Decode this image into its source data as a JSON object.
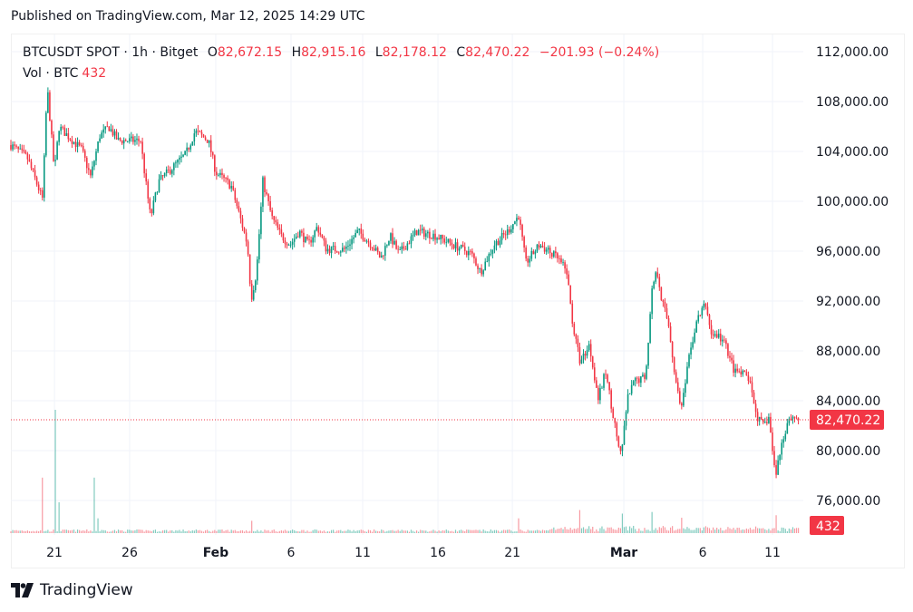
{
  "header": {
    "published": "Published on TradingView.com, Mar 12, 2025 14:29 UTC"
  },
  "legend": {
    "symbol": "BTCUSDT SPOT · 1h · Bitget",
    "o_label": "O",
    "o": "82,672.15",
    "h_label": "H",
    "h": "82,915.16",
    "l_label": "L",
    "l": "82,178.12",
    "c_label": "C",
    "c": "82,470.22",
    "change": "−201.93 (−0.24%)",
    "vol_label": "Vol · BTC",
    "vol": "432"
  },
  "footer": {
    "brand": "TradingView"
  },
  "colors": {
    "up": "#089981",
    "down": "#f23645",
    "grid": "#f0f3fa",
    "badge": "#f23645"
  },
  "chart_data": {
    "type": "candlestick",
    "title": "BTCUSDT SPOT · 1h · Bitget",
    "x_unit": "days since Jan 18, 2025",
    "ylim": [
      74400,
      114600
    ],
    "y_ticks": [
      76000,
      80000,
      84000,
      88000,
      92000,
      96000,
      100000,
      104000,
      108000,
      112000
    ],
    "y_tick_labels": [
      "76,000.00",
      "80,000.00",
      "84,000.00",
      "88,000.00",
      "92,000.00",
      "96,000.00",
      "100,000.00",
      "104,000.00",
      "108,000.00",
      "112,000.00"
    ],
    "x_ticks": [
      {
        "day": 2.94,
        "label": "21",
        "bold": false
      },
      {
        "day": 8.01,
        "label": "26",
        "bold": false
      },
      {
        "day": 13.82,
        "label": "Feb",
        "bold": true
      },
      {
        "day": 18.9,
        "label": "6",
        "bold": false
      },
      {
        "day": 23.73,
        "label": "11",
        "bold": false
      },
      {
        "day": 28.81,
        "label": "16",
        "bold": false
      },
      {
        "day": 33.83,
        "label": "21",
        "bold": false
      },
      {
        "day": 41.35,
        "label": "Mar",
        "bold": true
      },
      {
        "day": 46.67,
        "label": "6",
        "bold": false
      },
      {
        "day": 51.38,
        "label": "11",
        "bold": false
      }
    ],
    "last_price": 82470.22,
    "last_price_label": "82,470.22",
    "last_volume_label": "432",
    "price_path": [
      [
        0,
        104510
      ],
      [
        1.1,
        103500
      ],
      [
        2.14,
        100150
      ],
      [
        2.45,
        109240
      ],
      [
        2.94,
        102330
      ],
      [
        3.24,
        105960
      ],
      [
        3.85,
        105240
      ],
      [
        4.77,
        104150
      ],
      [
        5.38,
        101960
      ],
      [
        5.99,
        105240
      ],
      [
        6.61,
        105960
      ],
      [
        7.22,
        104870
      ],
      [
        8.75,
        104870
      ],
      [
        9.05,
        101960
      ],
      [
        9.42,
        98690
      ],
      [
        9.97,
        101600
      ],
      [
        10.89,
        102690
      ],
      [
        11.8,
        103780
      ],
      [
        12.42,
        105600
      ],
      [
        13.33,
        104870
      ],
      [
        13.82,
        102330
      ],
      [
        14.86,
        101240
      ],
      [
        15.47,
        98690
      ],
      [
        15.96,
        96510
      ],
      [
        16.21,
        92150
      ],
      [
        16.57,
        94330
      ],
      [
        17.0,
        101600
      ],
      [
        17.61,
        98690
      ],
      [
        18.23,
        97240
      ],
      [
        18.84,
        96510
      ],
      [
        19.45,
        97600
      ],
      [
        20.06,
        96510
      ],
      [
        20.67,
        97960
      ],
      [
        21.28,
        96150
      ],
      [
        22.51,
        96150
      ],
      [
        23.43,
        97600
      ],
      [
        24.34,
        96510
      ],
      [
        24.95,
        95420
      ],
      [
        25.57,
        97240
      ],
      [
        26.18,
        95780
      ],
      [
        27.4,
        97600
      ],
      [
        28.62,
        97240
      ],
      [
        29.85,
        96510
      ],
      [
        31.07,
        95780
      ],
      [
        31.68,
        94330
      ],
      [
        32.6,
        96510
      ],
      [
        33.52,
        97600
      ],
      [
        34.25,
        98840
      ],
      [
        34.74,
        95060
      ],
      [
        35.66,
        96510
      ],
      [
        36.88,
        95420
      ],
      [
        37.5,
        94330
      ],
      [
        37.92,
        89960
      ],
      [
        38.41,
        87060
      ],
      [
        39.02,
        88510
      ],
      [
        39.63,
        84150
      ],
      [
        40.12,
        86330
      ],
      [
        40.86,
        81240
      ],
      [
        41.16,
        79420
      ],
      [
        41.59,
        84150
      ],
      [
        42.08,
        85600
      ],
      [
        42.81,
        85960
      ],
      [
        43.3,
        93600
      ],
      [
        43.61,
        94330
      ],
      [
        43.91,
        92150
      ],
      [
        44.4,
        89960
      ],
      [
        44.83,
        85600
      ],
      [
        45.26,
        83420
      ],
      [
        45.75,
        87420
      ],
      [
        46.24,
        90330
      ],
      [
        46.85,
        91780
      ],
      [
        47.28,
        89240
      ],
      [
        47.71,
        89240
      ],
      [
        48.2,
        88510
      ],
      [
        48.81,
        86330
      ],
      [
        49.72,
        85960
      ],
      [
        50.34,
        82690
      ],
      [
        50.76,
        81960
      ],
      [
        51.13,
        82690
      ],
      [
        51.56,
        77960
      ],
      [
        51.99,
        80510
      ],
      [
        52.48,
        82690
      ],
      [
        52.97,
        82690
      ],
      [
        53.21,
        82470
      ]
    ],
    "relative_volume_spikes": [
      [
        2.14,
        0.45
      ],
      [
        2.94,
        1.0
      ],
      [
        3.24,
        0.25
      ],
      [
        5.6,
        0.45
      ],
      [
        5.9,
        0.12
      ],
      [
        16.2,
        0.1
      ],
      [
        34.3,
        0.12
      ],
      [
        38.4,
        0.17
      ],
      [
        41.2,
        0.15
      ],
      [
        43.3,
        0.15
      ],
      [
        45.3,
        0.12
      ],
      [
        51.6,
        0.12
      ],
      [
        53.2,
        0.1
      ]
    ]
  }
}
